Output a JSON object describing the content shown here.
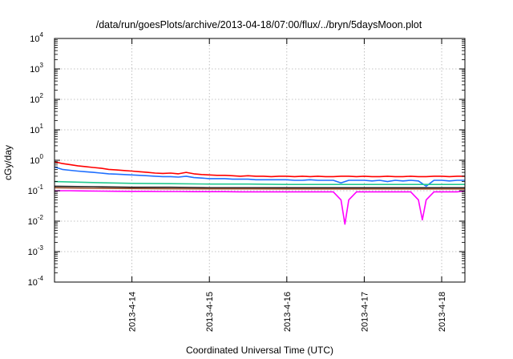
{
  "chart_data": {
    "type": "line",
    "title": "/data/run/goesPlots/archive/2013-04-18/07:00/flux/../bryn/5daysMoon.plot",
    "xlabel": "Coordinated Universal Time (UTC)",
    "ylabel": "cGy/day",
    "yscale": "log",
    "ylim": [
      0.0001,
      10000
    ],
    "xlim": [
      0,
      5.3
    ],
    "x_ticks": [
      {
        "x": 1,
        "label": "2013-4-14"
      },
      {
        "x": 2,
        "label": "2013-4-15"
      },
      {
        "x": 3,
        "label": "2013-4-16"
      },
      {
        "x": 4,
        "label": "2013-4-17"
      },
      {
        "x": 5,
        "label": "2013-4-18"
      }
    ],
    "y_ticks": [
      {
        "value": 0.0001,
        "base": "10",
        "exp": "-4"
      },
      {
        "value": 0.001,
        "base": "10",
        "exp": "-3"
      },
      {
        "value": 0.01,
        "base": "10",
        "exp": "-2"
      },
      {
        "value": 0.1,
        "base": "10",
        "exp": "-1"
      },
      {
        "value": 1,
        "base": "10",
        "exp": "0"
      },
      {
        "value": 10,
        "base": "10",
        "exp": "1"
      },
      {
        "value": 100,
        "base": "10",
        "exp": "2"
      },
      {
        "value": 1000,
        "base": "10",
        "exp": "3"
      },
      {
        "value": 10000,
        "base": "10",
        "exp": "4"
      }
    ],
    "grid": true,
    "legend": "none",
    "x_note": "x values are days elapsed from 2013-04-13 00:00 UTC",
    "series": [
      {
        "color": "#ff0000",
        "x": [
          0,
          0.1,
          0.2,
          0.3,
          0.4,
          0.5,
          0.6,
          0.7,
          0.8,
          0.9,
          1.0,
          1.1,
          1.2,
          1.3,
          1.4,
          1.5,
          1.6,
          1.7,
          1.8,
          1.9,
          2.0,
          2.1,
          2.2,
          2.3,
          2.4,
          2.5,
          2.6,
          2.7,
          2.8,
          2.9,
          3.0,
          3.1,
          3.2,
          3.3,
          3.4,
          3.5,
          3.6,
          3.7,
          3.8,
          3.9,
          4.0,
          4.1,
          4.2,
          4.3,
          4.4,
          4.5,
          4.6,
          4.7,
          4.8,
          4.9,
          5.0,
          5.1,
          5.2,
          5.3
        ],
        "y": [
          0.9,
          0.78,
          0.72,
          0.66,
          0.62,
          0.58,
          0.55,
          0.5,
          0.48,
          0.46,
          0.44,
          0.42,
          0.4,
          0.38,
          0.37,
          0.38,
          0.36,
          0.4,
          0.36,
          0.34,
          0.33,
          0.32,
          0.32,
          0.31,
          0.3,
          0.31,
          0.3,
          0.3,
          0.29,
          0.3,
          0.3,
          0.29,
          0.3,
          0.29,
          0.3,
          0.29,
          0.29,
          0.3,
          0.3,
          0.29,
          0.3,
          0.29,
          0.29,
          0.3,
          0.29,
          0.29,
          0.3,
          0.29,
          0.29,
          0.3,
          0.3,
          0.29,
          0.3,
          0.3
        ]
      },
      {
        "color": "#1f6fff",
        "x": [
          0,
          0.1,
          0.2,
          0.3,
          0.4,
          0.5,
          0.6,
          0.7,
          0.8,
          0.9,
          1.0,
          1.1,
          1.2,
          1.3,
          1.4,
          1.5,
          1.6,
          1.7,
          1.8,
          1.9,
          2.0,
          2.1,
          2.2,
          2.3,
          2.4,
          2.5,
          2.6,
          2.7,
          2.8,
          2.9,
          3.0,
          3.1,
          3.2,
          3.3,
          3.4,
          3.5,
          3.6,
          3.7,
          3.8,
          3.9,
          4.0,
          4.1,
          4.2,
          4.3,
          4.4,
          4.5,
          4.6,
          4.7,
          4.8,
          4.9,
          5.0,
          5.1,
          5.2,
          5.3
        ],
        "y": [
          0.6,
          0.5,
          0.47,
          0.44,
          0.42,
          0.4,
          0.38,
          0.36,
          0.35,
          0.34,
          0.33,
          0.32,
          0.31,
          0.3,
          0.29,
          0.29,
          0.28,
          0.3,
          0.27,
          0.26,
          0.25,
          0.25,
          0.25,
          0.24,
          0.24,
          0.24,
          0.23,
          0.23,
          0.23,
          0.23,
          0.23,
          0.22,
          0.22,
          0.23,
          0.22,
          0.22,
          0.22,
          0.18,
          0.22,
          0.22,
          0.22,
          0.21,
          0.22,
          0.2,
          0.22,
          0.21,
          0.22,
          0.21,
          0.14,
          0.22,
          0.22,
          0.21,
          0.22,
          0.22
        ]
      },
      {
        "color": "#22c98f",
        "x": [
          0,
          0.5,
          1.0,
          1.5,
          2.0,
          2.5,
          3.0,
          3.5,
          4.0,
          4.5,
          5.0,
          5.3
        ],
        "y": [
          0.2,
          0.185,
          0.175,
          0.17,
          0.165,
          0.165,
          0.16,
          0.16,
          0.16,
          0.16,
          0.16,
          0.16
        ]
      },
      {
        "color": "#222222",
        "x": [
          0,
          0.5,
          1.0,
          1.5,
          2.0,
          2.5,
          3.0,
          3.5,
          4.0,
          4.5,
          5.0,
          5.3
        ],
        "y": [
          0.14,
          0.135,
          0.13,
          0.13,
          0.125,
          0.125,
          0.125,
          0.125,
          0.125,
          0.125,
          0.125,
          0.125
        ]
      },
      {
        "color": "#a0522d",
        "x": [
          0,
          0.5,
          1.0,
          1.5,
          2.0,
          2.5,
          3.0,
          3.5,
          4.0,
          4.5,
          5.0,
          5.3
        ],
        "y": [
          0.125,
          0.12,
          0.118,
          0.116,
          0.115,
          0.115,
          0.114,
          0.114,
          0.114,
          0.114,
          0.114,
          0.114
        ]
      },
      {
        "color": "#ff00ff",
        "x": [
          0,
          0.2,
          0.4,
          0.6,
          0.8,
          1.0,
          1.2,
          1.4,
          1.6,
          1.8,
          2.0,
          2.2,
          2.4,
          2.6,
          2.8,
          3.0,
          3.2,
          3.4,
          3.6,
          3.7,
          3.75,
          3.8,
          3.9,
          4.0,
          4.2,
          4.4,
          4.6,
          4.7,
          4.75,
          4.8,
          4.9,
          5.0,
          5.2,
          5.3
        ],
        "y": [
          0.1,
          0.1,
          0.098,
          0.097,
          0.096,
          0.095,
          0.095,
          0.094,
          0.094,
          0.093,
          0.093,
          0.093,
          0.092,
          0.092,
          0.092,
          0.092,
          0.092,
          0.092,
          0.092,
          0.05,
          0.008,
          0.05,
          0.092,
          0.092,
          0.092,
          0.092,
          0.092,
          0.05,
          0.011,
          0.05,
          0.092,
          0.092,
          0.092,
          0.1
        ]
      }
    ]
  }
}
